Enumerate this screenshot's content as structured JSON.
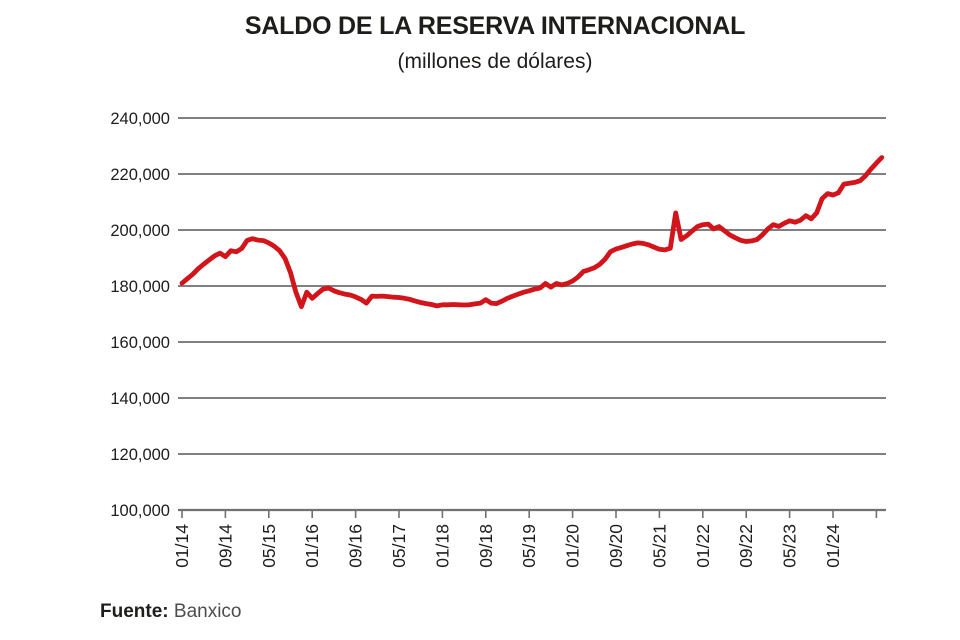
{
  "chart": {
    "title": "SALDO DE LA RESERVA INTERNACIONAL",
    "subtitle": "(millones de dólares)",
    "source_label": "Fuente:",
    "source_value": "Banxico"
  },
  "chart_data": {
    "type": "line",
    "title": "SALDO DE LA RESERVA INTERNACIONAL",
    "subtitle": "(millones de dólares)",
    "source": "Fuente: Banxico",
    "ylabel": "",
    "xlabel": "",
    "ylim": [
      100000,
      240000
    ],
    "ytick_interval": 20000,
    "yticks": [
      240000,
      220000,
      200000,
      180000,
      160000,
      140000,
      120000,
      100000
    ],
    "ytick_labels": [
      "240,000",
      "220,000",
      "200,000",
      "180,000",
      "160,000",
      "140,000",
      "120,000",
      "100,000"
    ],
    "xtick_labels": [
      "01/14",
      "09/14",
      "05/15",
      "01/16",
      "09/16",
      "05/17",
      "01/18",
      "09/18",
      "05/19",
      "01/20",
      "09/20",
      "05/21",
      "01/22",
      "09/22",
      "05/23",
      "01/24"
    ],
    "xtick_every_months": 8,
    "grid": true,
    "legend": "none",
    "line_color": "#d2141b",
    "grid_color": "#7e8083",
    "axis_color": "#6f7173",
    "text_color": "#1d1d1b",
    "frequency": "monthly",
    "first_month": "2014-01",
    "last_month": "2024-10",
    "values": [
      181000,
      182600,
      184200,
      186200,
      187800,
      189300,
      190800,
      191700,
      190500,
      192600,
      192200,
      193400,
      196300,
      196900,
      196400,
      196200,
      195400,
      194200,
      192600,
      189800,
      184800,
      177800,
      172600,
      177800,
      175600,
      177300,
      178900,
      179300,
      178300,
      177600,
      177100,
      176800,
      176100,
      175200,
      173900,
      176400,
      176300,
      176400,
      176200,
      176000,
      175900,
      175600,
      175200,
      174600,
      174100,
      173700,
      173400,
      172900,
      173300,
      173300,
      173400,
      173300,
      173200,
      173300,
      173600,
      173900,
      175100,
      173900,
      173700,
      174600,
      175600,
      176400,
      177100,
      177800,
      178300,
      178900,
      179300,
      180900,
      179600,
      180900,
      180400,
      180900,
      181800,
      183200,
      185200,
      185800,
      186500,
      187700,
      189600,
      192300,
      193200,
      193800,
      194400,
      195000,
      195400,
      195200,
      194700,
      193900,
      193100,
      192900,
      193500,
      206100,
      196600,
      197900,
      199600,
      201200,
      201900,
      202100,
      200400,
      201200,
      199700,
      198200,
      197200,
      196300,
      195900,
      196100,
      196600,
      198300,
      200400,
      201900,
      201300,
      202400,
      203300,
      202800,
      203500,
      205100,
      204000,
      206100,
      211200,
      213000,
      212500,
      213300,
      216400,
      216700,
      217000,
      217600,
      219400,
      221800,
      223900,
      225900
    ]
  }
}
